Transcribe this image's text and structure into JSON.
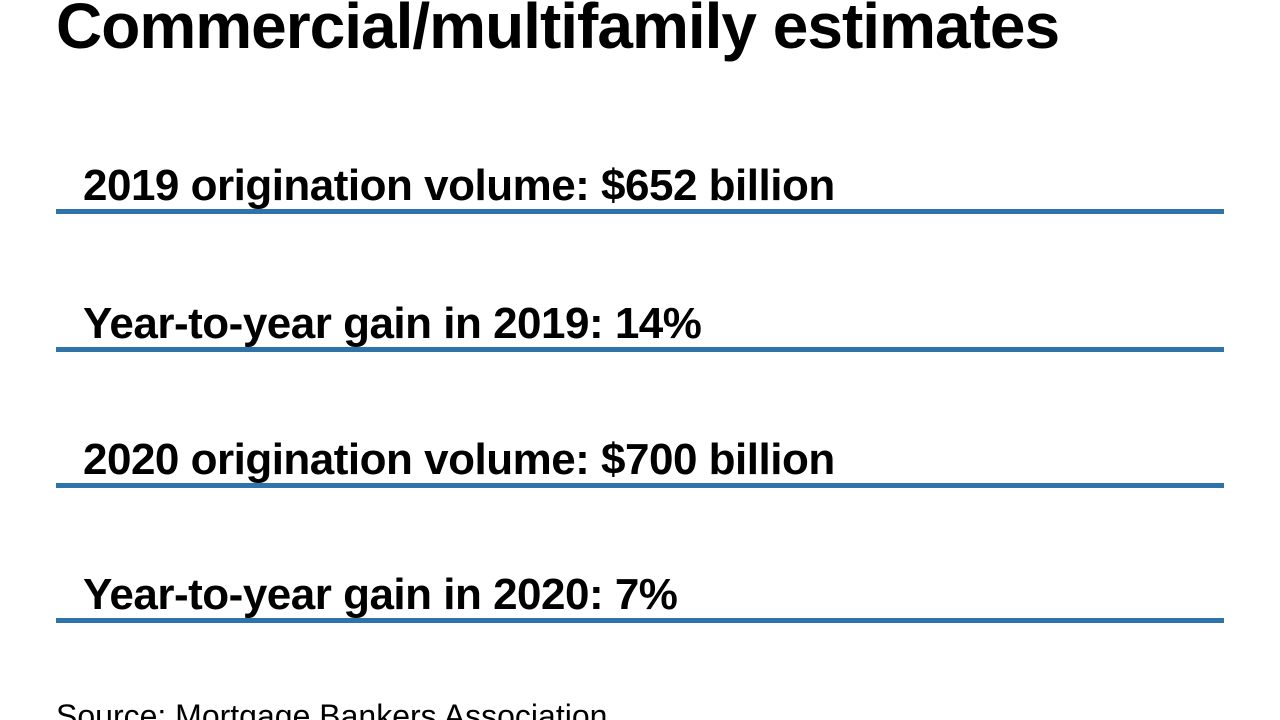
{
  "page": {
    "title": "Commercial/multifamily estimates",
    "source": "Source: Mortgage Bankers Association"
  },
  "stats": [
    {
      "text": "2019 origination volume: $652 billion"
    },
    {
      "text": "Year-to-year gain in 2019: 14%"
    },
    {
      "text": "2020 origination volume: $700 billion"
    },
    {
      "text": "Year-to-year gain in 2020: 7%"
    }
  ],
  "colors": {
    "text": "#000000",
    "rule_accent": "#2e74a8",
    "background": "#ffffff"
  },
  "chart_data": {
    "type": "table",
    "title": "Commercial/multifamily estimates",
    "rows": [
      {
        "label": "2019 origination volume",
        "value_text": "$652 billion",
        "value_billions_usd": 652
      },
      {
        "label": "Year-to-year gain in 2019",
        "value_text": "14%",
        "value_percent": 14
      },
      {
        "label": "2020 origination volume",
        "value_text": "$700 billion",
        "value_billions_usd": 700
      },
      {
        "label": "Year-to-year gain in 2020",
        "value_text": "7%",
        "value_percent": 7
      }
    ],
    "source": "Source: Mortgage Bankers Association",
    "layout": "stacked stat lines with blue underline rules, white background, source footer partially cut off at bottom edge"
  }
}
